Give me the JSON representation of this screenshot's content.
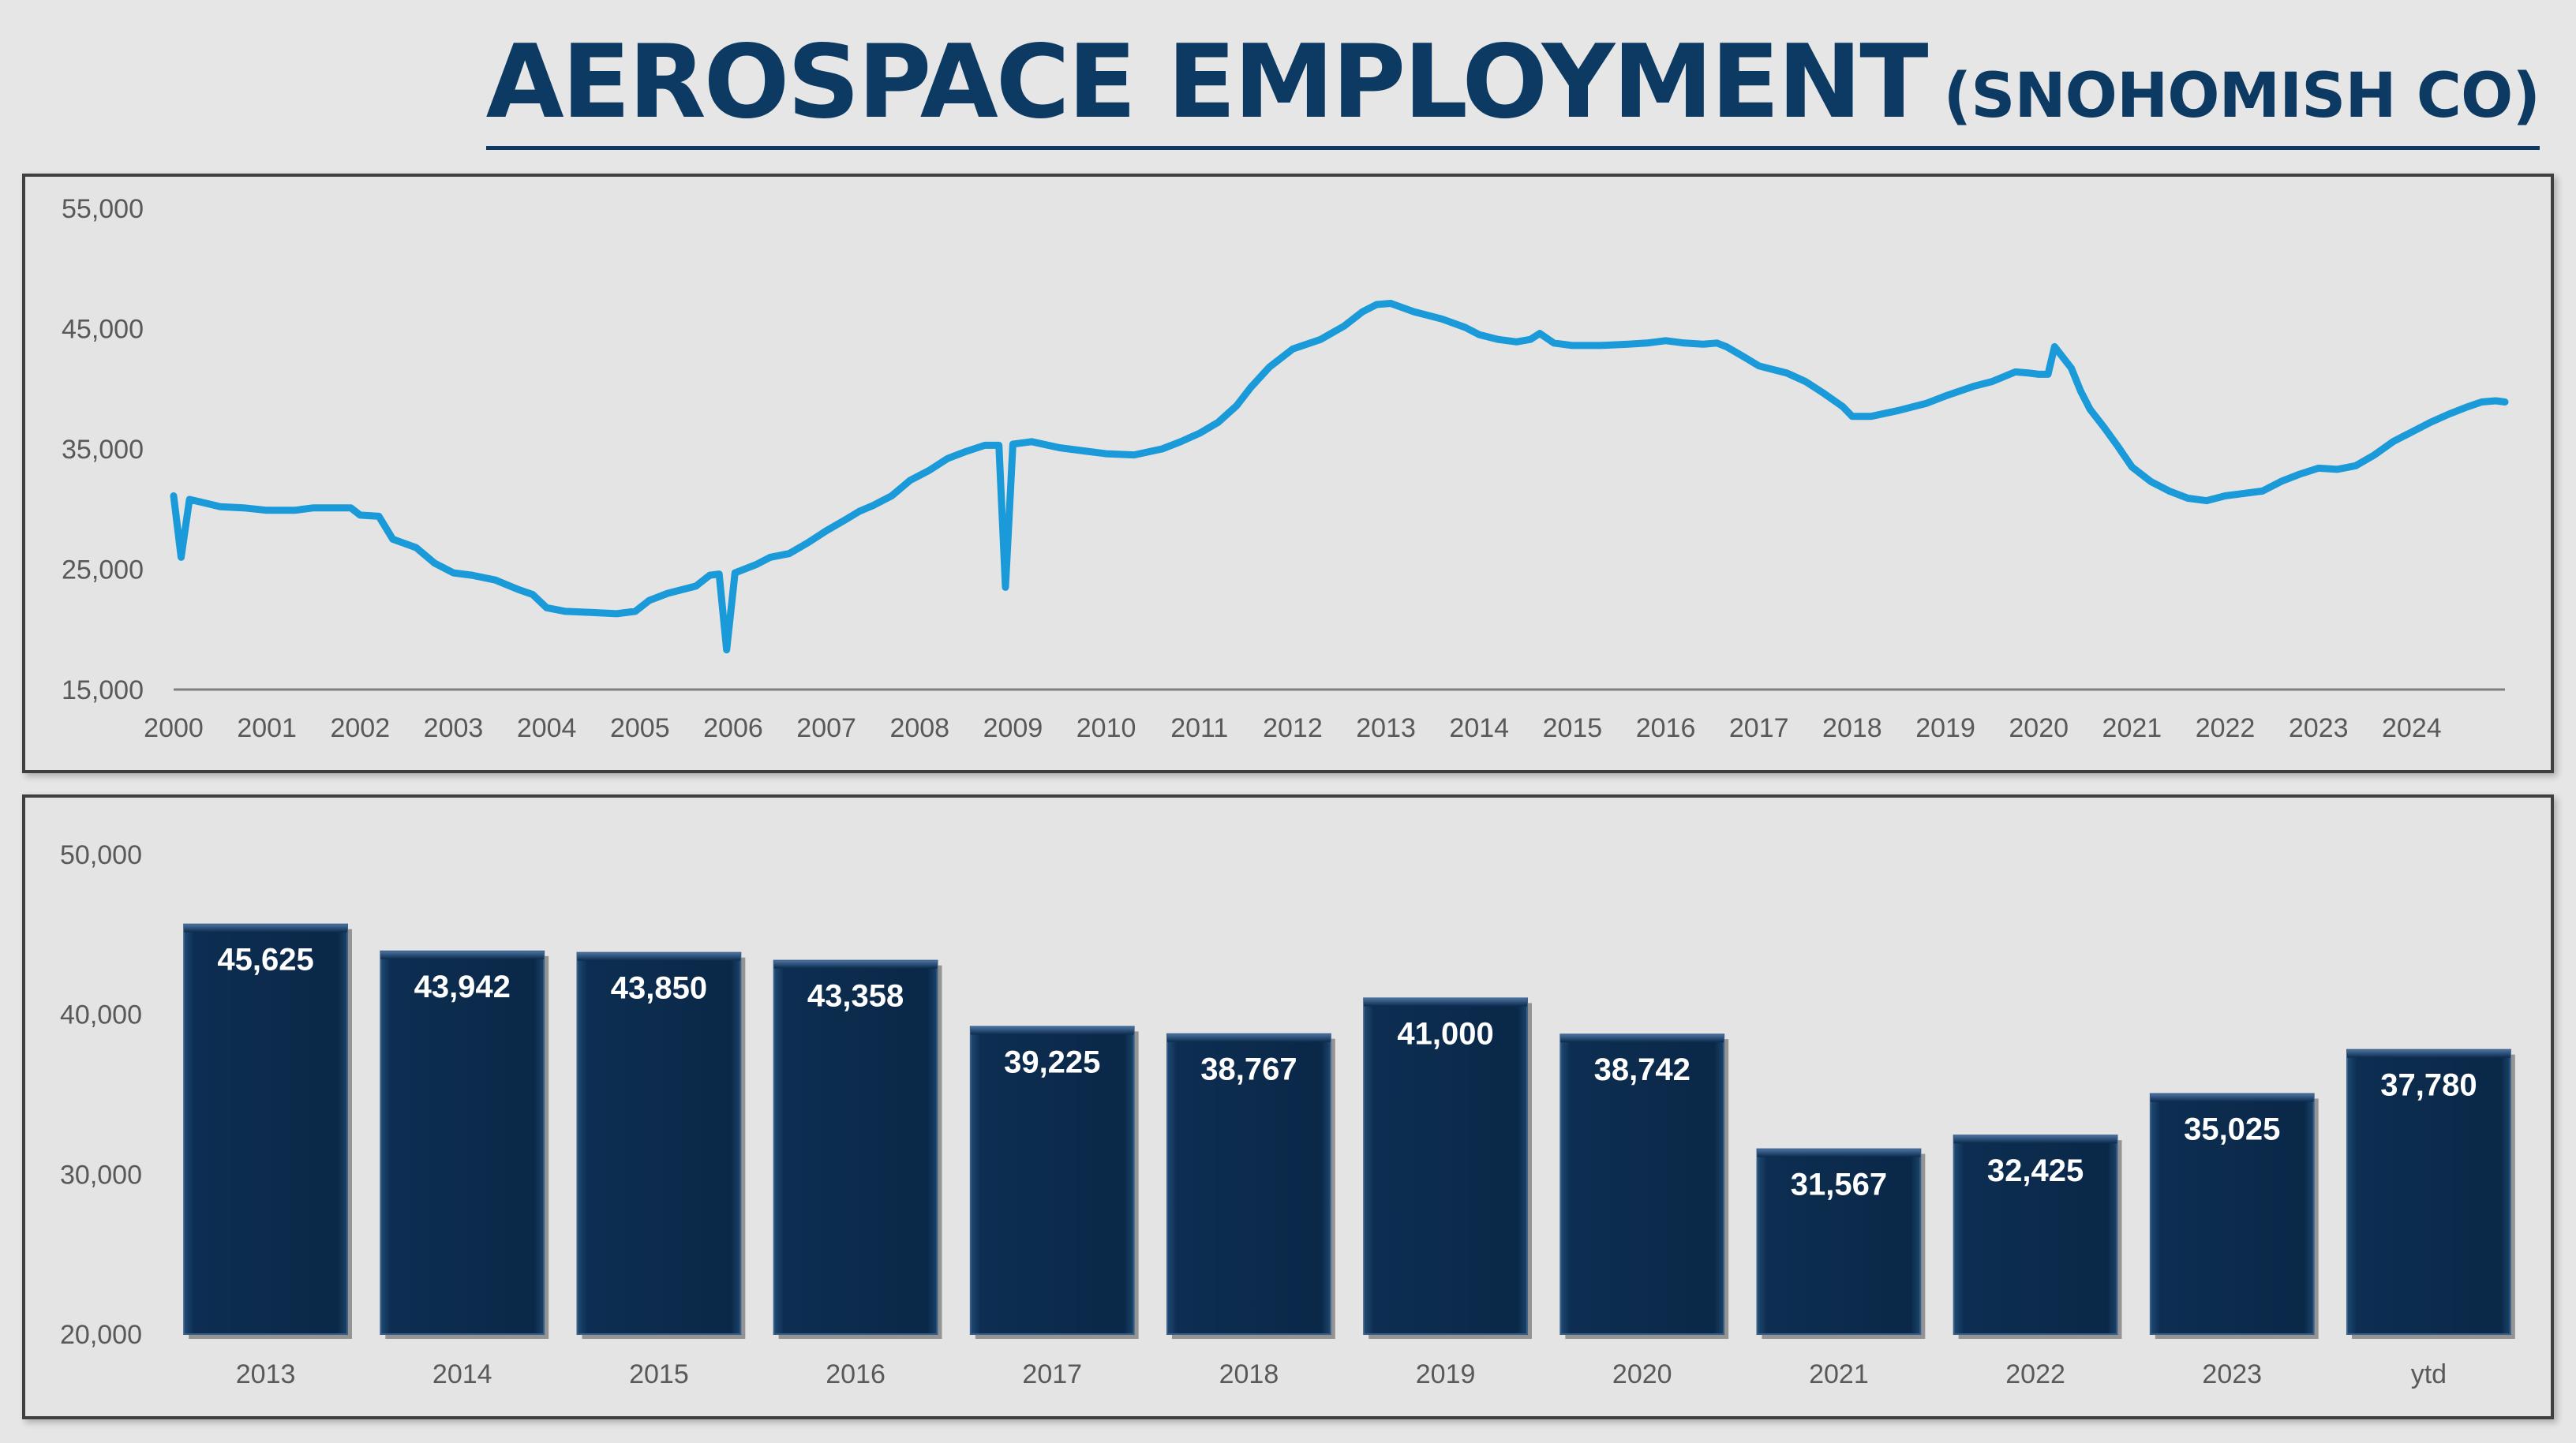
{
  "title": {
    "main": "AEROSPACE EMPLOYMENT",
    "sub": "(SNOHOMISH CO)"
  },
  "colors": {
    "line": "#1a9ad9",
    "bar": "#0b2a4c",
    "title": "#0c3a63",
    "axis": "#7f7f7f",
    "tick_text": "#595959"
  },
  "chart_data": [
    {
      "type": "line",
      "title": "",
      "xlabel": "",
      "ylabel": "",
      "ylim": [
        15000,
        55000
      ],
      "xlim": [
        2000,
        2025
      ],
      "yticks": [
        15000,
        25000,
        35000,
        45000,
        55000
      ],
      "ytick_labels": [
        "15,000",
        "25,000",
        "35,000",
        "45,000",
        "55,000"
      ],
      "xtick_labels": [
        "2000",
        "2001",
        "2002",
        "2003",
        "2004",
        "2005",
        "2006",
        "2007",
        "2008",
        "2009",
        "2010",
        "2011",
        "2012",
        "2013",
        "2014",
        "2015",
        "2016",
        "2017",
        "2018",
        "2019",
        "2020",
        "2021",
        "2022",
        "2023",
        "2024"
      ],
      "grid": false,
      "series": [
        {
          "values": [
            [
              2000.0,
              31100
            ],
            [
              2000.08,
              26000
            ],
            [
              2000.17,
              30800
            ],
            [
              2000.5,
              30200
            ],
            [
              2000.75,
              30100
            ],
            [
              2001.0,
              29900
            ],
            [
              2001.3,
              29900
            ],
            [
              2001.5,
              30100
            ],
            [
              2001.9,
              30100
            ],
            [
              2002.0,
              29500
            ],
            [
              2002.2,
              29400
            ],
            [
              2002.35,
              27500
            ],
            [
              2002.6,
              26800
            ],
            [
              2002.8,
              25500
            ],
            [
              2003.0,
              24700
            ],
            [
              2003.2,
              24500
            ],
            [
              2003.45,
              24100
            ],
            [
              2003.7,
              23300
            ],
            [
              2003.85,
              22900
            ],
            [
              2004.0,
              21800
            ],
            [
              2004.2,
              21500
            ],
            [
              2004.5,
              21400
            ],
            [
              2004.75,
              21300
            ],
            [
              2004.95,
              21500
            ],
            [
              2005.1,
              22400
            ],
            [
              2005.3,
              23000
            ],
            [
              2005.6,
              23600
            ],
            [
              2005.75,
              24500
            ],
            [
              2005.85,
              24600
            ],
            [
              2005.93,
              18300
            ],
            [
              2006.02,
              24700
            ],
            [
              2006.25,
              25400
            ],
            [
              2006.4,
              26000
            ],
            [
              2006.6,
              26300
            ],
            [
              2006.8,
              27200
            ],
            [
              2007.0,
              28200
            ],
            [
              2007.2,
              29100
            ],
            [
              2007.35,
              29800
            ],
            [
              2007.5,
              30300
            ],
            [
              2007.7,
              31100
            ],
            [
              2007.9,
              32400
            ],
            [
              2008.1,
              33200
            ],
            [
              2008.3,
              34200
            ],
            [
              2008.5,
              34800
            ],
            [
              2008.7,
              35300
            ],
            [
              2008.85,
              35300
            ],
            [
              2008.92,
              23500
            ],
            [
              2009.0,
              35400
            ],
            [
              2009.2,
              35600
            ],
            [
              2009.5,
              35100
            ],
            [
              2009.8,
              34800
            ],
            [
              2010.0,
              34600
            ],
            [
              2010.3,
              34500
            ],
            [
              2010.6,
              35000
            ],
            [
              2010.8,
              35600
            ],
            [
              2011.0,
              36300
            ],
            [
              2011.2,
              37200
            ],
            [
              2011.4,
              38600
            ],
            [
              2011.55,
              40100
            ],
            [
              2011.75,
              41800
            ],
            [
              2012.0,
              43300
            ],
            [
              2012.3,
              44100
            ],
            [
              2012.55,
              45200
            ],
            [
              2012.75,
              46400
            ],
            [
              2012.9,
              47000
            ],
            [
              2013.05,
              47100
            ],
            [
              2013.3,
              46400
            ],
            [
              2013.6,
              45800
            ],
            [
              2013.85,
              45100
            ],
            [
              2014.0,
              44500
            ],
            [
              2014.2,
              44100
            ],
            [
              2014.4,
              43900
            ],
            [
              2014.55,
              44100
            ],
            [
              2014.65,
              44600
            ],
            [
              2014.8,
              43800
            ],
            [
              2015.0,
              43600
            ],
            [
              2015.3,
              43600
            ],
            [
              2015.6,
              43700
            ],
            [
              2015.8,
              43800
            ],
            [
              2016.0,
              44000
            ],
            [
              2016.2,
              43800
            ],
            [
              2016.4,
              43700
            ],
            [
              2016.55,
              43800
            ],
            [
              2016.65,
              43500
            ],
            [
              2016.85,
              42600
            ],
            [
              2017.0,
              41900
            ],
            [
              2017.3,
              41300
            ],
            [
              2017.5,
              40600
            ],
            [
              2017.7,
              39600
            ],
            [
              2017.9,
              38500
            ],
            [
              2018.0,
              37700
            ],
            [
              2018.2,
              37700
            ],
            [
              2018.5,
              38200
            ],
            [
              2018.8,
              38800
            ],
            [
              2019.0,
              39400
            ],
            [
              2019.3,
              40200
            ],
            [
              2019.5,
              40600
            ],
            [
              2019.75,
              41400
            ],
            [
              2019.9,
              41300
            ],
            [
              2020.0,
              41200
            ],
            [
              2020.1,
              41200
            ],
            [
              2020.17,
              43500
            ],
            [
              2020.35,
              41700
            ],
            [
              2020.45,
              39800
            ],
            [
              2020.55,
              38300
            ],
            [
              2020.7,
              36800
            ],
            [
              2020.85,
              35200
            ],
            [
              2021.0,
              33500
            ],
            [
              2021.2,
              32300
            ],
            [
              2021.4,
              31500
            ],
            [
              2021.6,
              30900
            ],
            [
              2021.8,
              30700
            ],
            [
              2022.0,
              31100
            ],
            [
              2022.2,
              31300
            ],
            [
              2022.4,
              31500
            ],
            [
              2022.6,
              32300
            ],
            [
              2022.8,
              32900
            ],
            [
              2023.0,
              33400
            ],
            [
              2023.2,
              33300
            ],
            [
              2023.4,
              33600
            ],
            [
              2023.6,
              34500
            ],
            [
              2023.8,
              35600
            ],
            [
              2024.0,
              36400
            ],
            [
              2024.2,
              37200
            ],
            [
              2024.4,
              37900
            ],
            [
              2024.6,
              38500
            ],
            [
              2024.75,
              38900
            ],
            [
              2024.9,
              39000
            ],
            [
              2025.0,
              38900
            ]
          ]
        }
      ]
    },
    {
      "type": "bar",
      "title": "",
      "xlabel": "",
      "ylabel": "",
      "ylim": [
        20000,
        50000
      ],
      "yticks": [
        20000,
        30000,
        40000,
        50000
      ],
      "ytick_labels": [
        "20,000",
        "30,000",
        "40,000",
        "50,000"
      ],
      "categories": [
        "2013",
        "2014",
        "2015",
        "2016",
        "2017",
        "2018",
        "2019",
        "2020",
        "2021",
        "2022",
        "2023",
        "ytd"
      ],
      "values": [
        45625,
        43942,
        43850,
        43358,
        39225,
        38767,
        41000,
        38742,
        31567,
        32425,
        35025,
        37780
      ],
      "value_labels": [
        "45,625",
        "43,942",
        "43,850",
        "43,358",
        "39,225",
        "38,767",
        "41,000",
        "38,742",
        "31,567",
        "32,425",
        "35,025",
        "37,780"
      ],
      "grid": false,
      "legend": "none"
    }
  ]
}
